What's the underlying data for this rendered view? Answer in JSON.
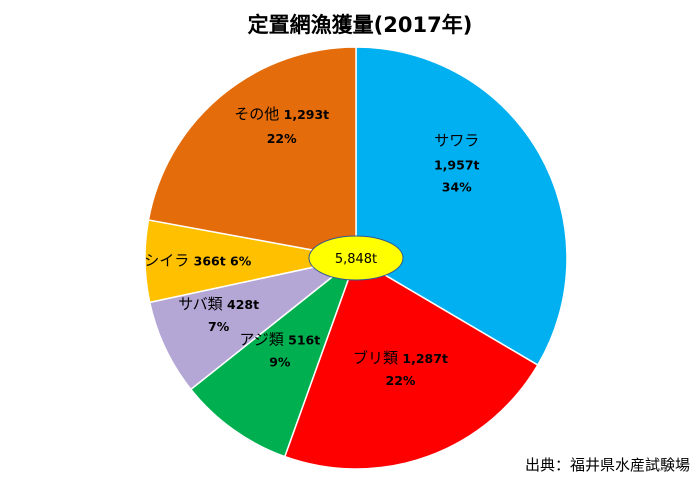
{
  "chart_data": {
    "type": "pie",
    "title": "定置網漁獲量(2017年)",
    "total_label": "5,848t",
    "source": "出典：福井県水産試験場",
    "slices": [
      {
        "name": "サワラ",
        "value": 1957,
        "value_text": "1,957t",
        "percent": 34,
        "percent_text": "34%",
        "color": "#00b0f0"
      },
      {
        "name": "ブリ類",
        "value": 1287,
        "value_text": "1,287t",
        "percent": 22,
        "percent_text": "22%",
        "color": "#ff0000"
      },
      {
        "name": "アジ類",
        "value": 516,
        "value_text": "516t",
        "percent": 9,
        "percent_text": "9%",
        "color": "#00b050"
      },
      {
        "name": "サバ類",
        "value": 428,
        "value_text": "428t",
        "percent": 7,
        "percent_text": "7%",
        "color": "#b4a7d6"
      },
      {
        "name": "シイラ",
        "value": 366,
        "value_text": "366t",
        "percent": 6,
        "percent_text": "6%",
        "color": "#ffc000"
      },
      {
        "name": "その他",
        "value": 1293,
        "value_text": "1,293t",
        "percent": 22,
        "percent_text": "22%",
        "color": "#e46c0a"
      }
    ],
    "center_badge_color": "#ffff00"
  }
}
